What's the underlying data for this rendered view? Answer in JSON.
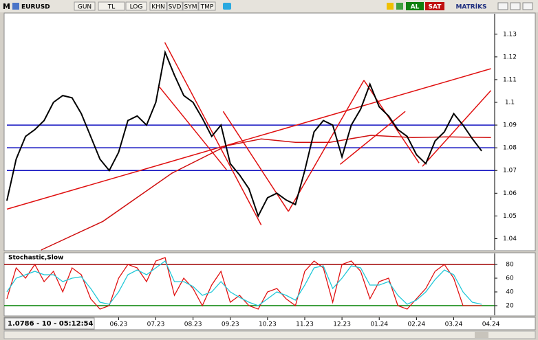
{
  "toolbar": {
    "symbol": "EURUSD",
    "buttons": [
      "GUN",
      "TL",
      "LOG",
      "KHN",
      "SVD",
      "SYM",
      "TMP"
    ],
    "actions": [
      "AL",
      "SAT"
    ],
    "brand": "MATRİKS"
  },
  "status": {
    "quote": "1.0786 - 10 - 05:12:54"
  },
  "chart_data": [
    {
      "type": "line",
      "x": [
        0,
        0.25,
        0.5,
        0.75,
        1,
        1.25,
        1.5,
        1.75,
        2,
        2.25,
        2.5,
        2.75,
        3,
        3.25,
        3.5,
        3.75,
        4,
        4.25,
        4.5,
        4.75,
        5,
        5.25,
        5.5,
        5.75,
        6,
        6.25,
        6.5,
        6.75,
        7,
        7.25,
        7.5,
        7.75,
        8,
        8.25,
        8.5,
        8.75,
        9,
        9.25,
        9.5,
        9.75,
        10,
        10.25,
        10.5,
        10.75,
        11,
        11.25,
        11.5,
        11.75,
        12,
        12.25,
        12.5,
        12.75
      ],
      "series": [
        {
          "color": "#000000",
          "values": [
            1.0567,
            1.075,
            1.085,
            1.088,
            1.092,
            1.1,
            1.103,
            1.102,
            1.095,
            1.085,
            1.075,
            1.07,
            1.078,
            1.092,
            1.094,
            1.09,
            1.1,
            1.122,
            1.112,
            1.103,
            1.1,
            1.093,
            1.085,
            1.09,
            1.073,
            1.068,
            1.062,
            1.05,
            1.058,
            1.06,
            1.057,
            1.055,
            1.07,
            1.087,
            1.092,
            1.09,
            1.076,
            1.09,
            1.097,
            1.108,
            1.098,
            1.094,
            1.088,
            1.085,
            1.077,
            1.073,
            1.083,
            1.087,
            1.095,
            1.09,
            1.084,
            1.0786
          ]
        }
      ],
      "moving_average": {
        "color": "#d01010",
        "x": [
          0.92,
          2.58,
          4.43,
          5.9,
          6.83,
          7.75,
          8.67,
          9.78,
          10.89,
          11.81,
          13.0
        ],
        "values": [
          1.035,
          1.0476,
          1.0688,
          1.0809,
          1.0839,
          1.0824,
          1.0824,
          1.0855,
          1.0845,
          1.0848,
          1.0845
        ]
      },
      "trendlines": [
        {
          "color": "#e01010",
          "x": [
            4.24,
            6.83
          ],
          "values": [
            1.1264,
            1.046
          ]
        },
        {
          "color": "#e01010",
          "x": [
            4.1,
            5.9
          ],
          "values": [
            1.1067,
            1.0703
          ]
        },
        {
          "color": "#e01010",
          "x": [
            5.81,
            7.56
          ],
          "values": [
            1.096,
            1.052
          ]
        },
        {
          "color": "#e01010",
          "x": [
            7.56,
            9.59
          ],
          "values": [
            1.052,
            1.1097
          ]
        },
        {
          "color": "#e01010",
          "x": [
            8.95,
            10.7
          ],
          "values": [
            1.0727,
            1.096
          ]
        },
        {
          "color": "#e01010",
          "x": [
            9.59,
            11.07
          ],
          "values": [
            1.1097,
            1.0733
          ]
        },
        {
          "color": "#e01010",
          "x": [
            0,
            13.0
          ],
          "values": [
            1.053,
            1.1148
          ]
        },
        {
          "color": "#e01010",
          "x": [
            11.16,
            13.0
          ],
          "values": [
            1.0718,
            1.1052
          ]
        }
      ],
      "hlines": {
        "color": "#1010c0",
        "values": [
          1.09,
          1.08,
          1.07
        ]
      },
      "xlim": [
        0,
        13.1
      ],
      "ylim": [
        1.035,
        1.139
      ],
      "yticks": [
        1.04,
        1.05,
        1.06,
        1.07,
        1.08,
        1.09,
        1.1,
        1.11,
        1.12,
        1.13
      ]
    },
    {
      "type": "line",
      "title": "Stochastic,Slow",
      "x": [
        0,
        0.25,
        0.5,
        0.75,
        1,
        1.25,
        1.5,
        1.75,
        2,
        2.25,
        2.5,
        2.75,
        3,
        3.25,
        3.5,
        3.75,
        4,
        4.25,
        4.5,
        4.75,
        5,
        5.25,
        5.5,
        5.75,
        6,
        6.25,
        6.5,
        6.75,
        7,
        7.25,
        7.5,
        7.75,
        8,
        8.25,
        8.5,
        8.75,
        9,
        9.25,
        9.5,
        9.75,
        10,
        10.25,
        10.5,
        10.75,
        11,
        11.25,
        11.5,
        11.75,
        12,
        12.25,
        12.5,
        12.75
      ],
      "series": [
        {
          "color": "#e01010",
          "values": [
            30,
            75,
            60,
            80,
            55,
            70,
            40,
            75,
            65,
            30,
            15,
            20,
            60,
            80,
            75,
            55,
            85,
            90,
            35,
            60,
            45,
            20,
            50,
            70,
            25,
            35,
            20,
            15,
            40,
            45,
            30,
            20,
            70,
            85,
            75,
            25,
            80,
            85,
            70,
            30,
            55,
            60,
            20,
            15,
            30,
            45,
            70,
            80,
            60,
            20,
            20,
            20
          ]
        },
        {
          "color": "#20c8d8",
          "values": [
            40,
            60,
            65,
            70,
            65,
            65,
            55,
            60,
            62,
            45,
            25,
            22,
            40,
            65,
            72,
            65,
            75,
            85,
            55,
            55,
            48,
            35,
            40,
            55,
            40,
            32,
            25,
            20,
            30,
            40,
            35,
            28,
            50,
            75,
            78,
            45,
            60,
            78,
            75,
            50,
            50,
            55,
            35,
            22,
            28,
            40,
            58,
            72,
            65,
            40,
            25,
            22
          ]
        }
      ],
      "levels": [
        {
          "value": 80,
          "color": "#a00000"
        },
        {
          "value": 20,
          "color": "#008000"
        }
      ],
      "xlim": [
        0,
        13.1
      ],
      "ylim": [
        6,
        96
      ],
      "yticks": [
        20,
        40,
        60,
        80
      ],
      "xticks": [
        {
          "value": 3,
          "label": "06.23"
        },
        {
          "value": 4,
          "label": "07.23"
        },
        {
          "value": 5,
          "label": "08.23"
        },
        {
          "value": 6,
          "label": "09.23"
        },
        {
          "value": 7,
          "label": "10.23"
        },
        {
          "value": 8,
          "label": "11.23"
        },
        {
          "value": 9,
          "label": "12.23"
        },
        {
          "value": 10,
          "label": "01.24"
        },
        {
          "value": 11,
          "label": "02.24"
        },
        {
          "value": 12,
          "label": "03.24"
        },
        {
          "value": 13,
          "label": "04.24"
        }
      ]
    }
  ]
}
